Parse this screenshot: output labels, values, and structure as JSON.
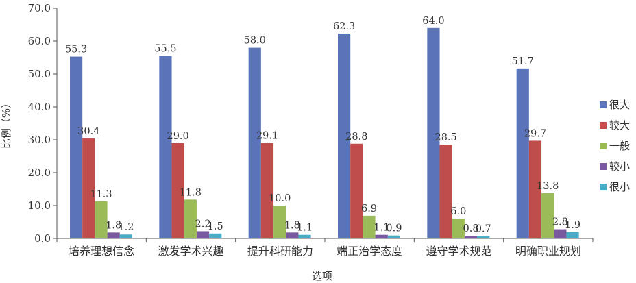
{
  "chart_data": {
    "type": "bar",
    "title": "",
    "xlabel": "选项",
    "ylabel": "比例（%）",
    "ylim": [
      0,
      70
    ],
    "yticks": [
      "0.0",
      "10.0",
      "20.0",
      "30.0",
      "40.0",
      "50.0",
      "60.0",
      "70.0"
    ],
    "grid": false,
    "legend_position": "right",
    "categories": [
      "培养理想信念",
      "激发学术兴趣",
      "提升科研能力",
      "端正治学态度",
      "遵守学术规范",
      "明确职业规划"
    ],
    "series": [
      {
        "name": "很大",
        "color": "#5b73b8",
        "values": [
          55.3,
          55.5,
          58.0,
          62.3,
          64.0,
          51.7
        ],
        "labels": [
          "55.3",
          "55.5",
          "58.0",
          "62.3",
          "64.0",
          "51.7"
        ]
      },
      {
        "name": "较大",
        "color": "#bf4d4b",
        "values": [
          30.4,
          29.0,
          29.1,
          28.8,
          28.5,
          29.7
        ],
        "labels": [
          "30.4",
          "29.0",
          "29.1",
          "28.8",
          "28.5",
          "29.7"
        ]
      },
      {
        "name": "一般",
        "color": "#9bbb59",
        "values": [
          11.3,
          11.8,
          10.0,
          6.9,
          6.0,
          13.8
        ],
        "labels": [
          "11.3",
          "11.8",
          "10.0",
          "6.9",
          "6.0",
          "13.8"
        ]
      },
      {
        "name": "较小",
        "color": "#7a5a9e",
        "values": [
          1.8,
          2.2,
          1.8,
          1.1,
          0.8,
          2.8
        ],
        "labels": [
          "1.8",
          "2.2",
          "1.8",
          "1.1",
          "0.8",
          "2.8"
        ]
      },
      {
        "name": "很小",
        "color": "#4aacc6",
        "values": [
          1.2,
          1.5,
          1.1,
          0.9,
          0.7,
          1.9
        ],
        "labels": [
          "1.2",
          "1.5",
          "1.1",
          "0.9",
          "0.7",
          "1.9"
        ]
      }
    ]
  }
}
